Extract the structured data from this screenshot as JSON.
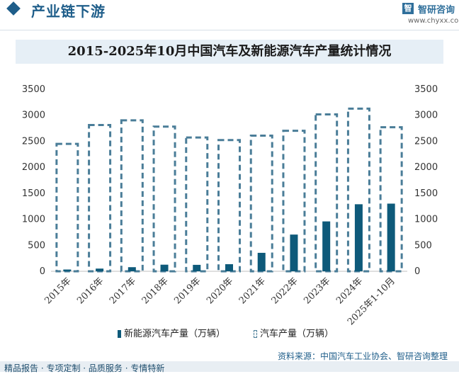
{
  "header": {
    "section_title": "产业链下游",
    "brand_name": "智研咨询",
    "brand_mark": "智",
    "brand_url": "www.chyxx.com"
  },
  "footer": {
    "source": "资料来源：中国汽车工业协会、智研咨询整理",
    "slogan": "精品报告 · 专项定制 · 品质服务 · 专情特新"
  },
  "colors": {
    "nev_bar": "#0e5a7a",
    "total_bar": "#4a7d98",
    "title_band": "#e6eff6"
  },
  "chart_data": {
    "type": "bar",
    "title": "2015-2025年10月中国汽车及新能源汽车产量统计情况",
    "categories": [
      "2015年",
      "2016年",
      "2017年",
      "2018年",
      "2019年",
      "2020年",
      "2021年",
      "2022年",
      "2023年",
      "2024年",
      "2025年1-10月"
    ],
    "series": [
      {
        "name": "新能源汽车产量（万辆）",
        "style": "solid",
        "values": [
          34,
          52,
          79,
          127,
          124,
          137,
          355,
          706,
          959,
          1289,
          1301
        ]
      },
      {
        "name": "汽车产量（万辆）",
        "style": "dashed-outline",
        "values": [
          2450,
          2812,
          2902,
          2782,
          2572,
          2523,
          2608,
          2702,
          3016,
          3128,
          2770
        ]
      }
    ],
    "ylim": [
      0,
      3500
    ],
    "yticks": [
      0,
      500,
      1000,
      1500,
      2000,
      2500,
      3000,
      3500
    ],
    "ytick_labels": [
      "0",
      "500",
      "1000",
      "1500",
      "2000",
      "2500",
      "3000",
      "3500"
    ],
    "legend_position": "bottom"
  }
}
